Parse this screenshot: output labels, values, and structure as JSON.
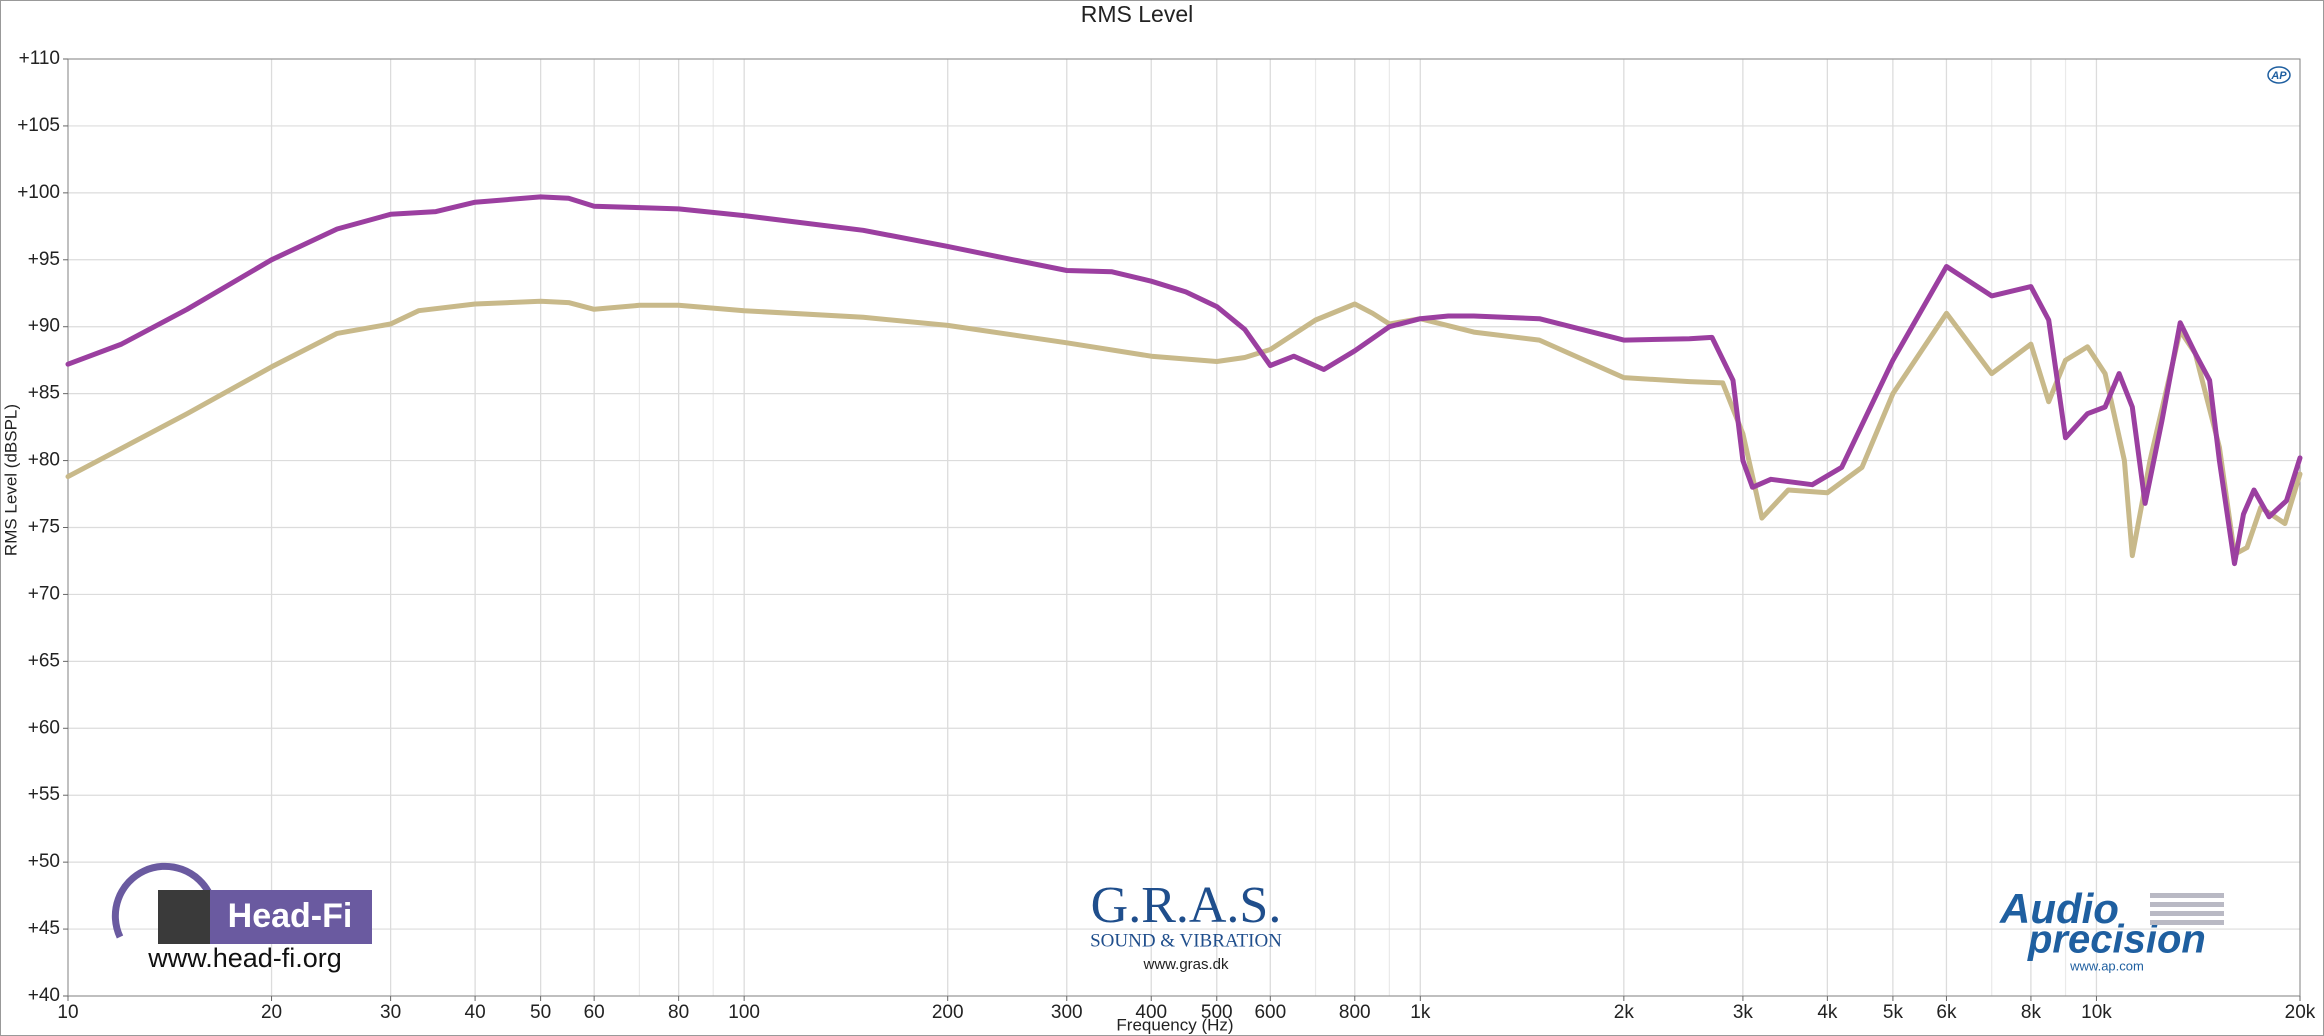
{
  "chart_data": {
    "type": "line",
    "title": "RMS Level",
    "x_label": "Frequency (Hz)",
    "y_label": "RMS Level  (dBSPL)",
    "x_log": true,
    "grid": true,
    "xlim": [
      10,
      20000
    ],
    "ylim": [
      40,
      110
    ],
    "xticks": [
      10,
      20,
      30,
      40,
      50,
      60,
      80,
      100,
      200,
      300,
      400,
      500,
      600,
      800,
      {
        "value": 1000,
        "label": "1k"
      },
      {
        "value": 2000,
        "label": "2k"
      },
      {
        "value": 3000,
        "label": "3k"
      },
      {
        "value": 4000,
        "label": "4k"
      },
      {
        "value": 5000,
        "label": "5k"
      },
      {
        "value": 6000,
        "label": "6k"
      },
      {
        "value": 8000,
        "label": "8k"
      },
      {
        "value": 10000,
        "label": "10k"
      },
      {
        "value": 20000,
        "label": "20k"
      }
    ],
    "yticks": [
      {
        "value": 110,
        "label": "+110"
      },
      {
        "value": 105,
        "label": "+105"
      },
      {
        "value": 100,
        "label": "+100"
      },
      {
        "value": 95,
        "label": "+95"
      },
      {
        "value": 90,
        "label": "+90"
      },
      {
        "value": 85,
        "label": "+85"
      },
      {
        "value": 80,
        "label": "+80"
      },
      {
        "value": 75,
        "label": "+75"
      },
      {
        "value": 70,
        "label": "+70"
      },
      {
        "value": 65,
        "label": "+65"
      },
      {
        "value": 60,
        "label": "+60"
      },
      {
        "value": 55,
        "label": "+55"
      },
      {
        "value": 50,
        "label": "+50"
      },
      {
        "value": 45,
        "label": "+45"
      },
      {
        "value": 40,
        "label": "+40"
      }
    ],
    "series": [
      {
        "color": "#c8b98a",
        "x": [
          10,
          15,
          20,
          25,
          30,
          33,
          40,
          50,
          55,
          60,
          70,
          80,
          100,
          150,
          200,
          300,
          400,
          500,
          550,
          600,
          700,
          800,
          850,
          900,
          1000,
          1200,
          1500,
          2000,
          2500,
          2800,
          3000,
          3200,
          3500,
          4000,
          4500,
          5000,
          6000,
          7000,
          8000,
          8500,
          9000,
          9700,
          10300,
          11000,
          11300,
          12000,
          13300,
          14000,
          15200,
          16000,
          16700,
          17500,
          19000,
          20000
        ],
        "values": [
          78.8,
          83.5,
          87,
          89.5,
          90.2,
          91.2,
          91.7,
          91.9,
          91.8,
          91.3,
          91.6,
          91.6,
          91.2,
          90.7,
          90.1,
          88.8,
          87.8,
          87.4,
          87.7,
          88.3,
          90.5,
          91.7,
          91,
          90.2,
          90.6,
          89.6,
          89,
          86.2,
          85.9,
          85.8,
          82,
          75.7,
          77.8,
          77.6,
          79.5,
          85,
          91,
          86.5,
          88.7,
          84.4,
          87.5,
          88.5,
          86.5,
          80,
          72.9,
          80,
          89.7,
          88,
          81,
          73,
          73.5,
          76.5,
          75.3,
          79
        ]
      },
      {
        "color": "#9b3fa0",
        "x": [
          10,
          12,
          15,
          20,
          25,
          30,
          35,
          40,
          50,
          55,
          60,
          70,
          80,
          100,
          150,
          200,
          250,
          300,
          350,
          400,
          450,
          500,
          550,
          600,
          650,
          720,
          800,
          900,
          1000,
          1100,
          1200,
          1500,
          2000,
          2500,
          2700,
          2900,
          3000,
          3100,
          3300,
          3800,
          4200,
          5000,
          6000,
          7000,
          8000,
          8500,
          9000,
          9700,
          10300,
          10800,
          11300,
          11800,
          12500,
          13300,
          14000,
          14700,
          15200,
          16000,
          16500,
          17100,
          18000,
          19100,
          20000
        ],
        "values": [
          87.2,
          88.7,
          91.3,
          95,
          97.3,
          98.4,
          98.6,
          99.3,
          99.7,
          99.6,
          99,
          98.9,
          98.8,
          98.3,
          97.2,
          96,
          95,
          94.2,
          94.1,
          93.4,
          92.6,
          91.5,
          89.8,
          87.1,
          87.8,
          86.8,
          88.2,
          90,
          90.6,
          90.8,
          90.8,
          90.6,
          89,
          89.1,
          89.2,
          86,
          80,
          78,
          78.6,
          78.2,
          79.5,
          87.5,
          94.5,
          92.3,
          93,
          90.5,
          81.7,
          83.5,
          84,
          86.5,
          84,
          76.8,
          83,
          90.3,
          88,
          86,
          80,
          72.3,
          76,
          77.8,
          75.8,
          77,
          80.2
        ]
      }
    ]
  },
  "logos": {
    "headfi": {
      "name": "Head-Fi",
      "url": "www.head-fi.org"
    },
    "gras": {
      "name": "G.R.A.S.",
      "tagline": "SOUND & VIBRATION",
      "url": "www.gras.dk"
    },
    "ap": {
      "line1": "Audio",
      "line2": "precision",
      "url": "www.ap.com",
      "badge": "AP"
    }
  }
}
